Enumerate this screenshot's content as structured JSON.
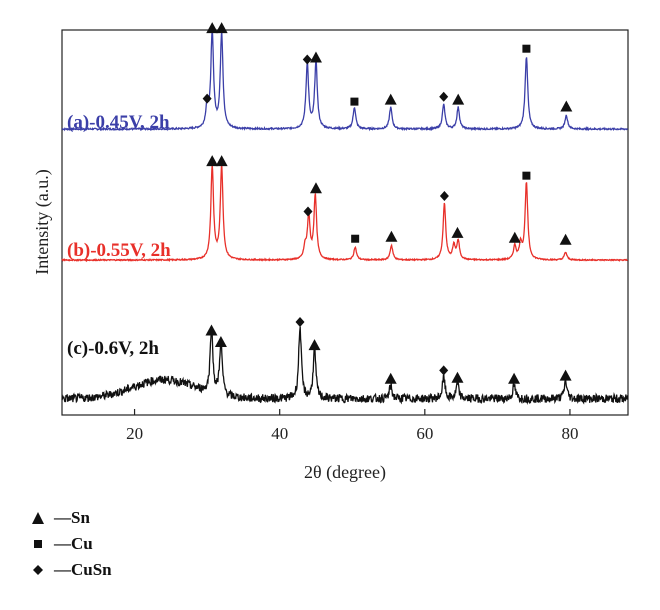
{
  "chart_data": {
    "type": "line",
    "xlabel": "2θ (degree)",
    "ylabel": "Intensity (a.u.)",
    "xlim": [
      10,
      88
    ],
    "xticks": [
      20,
      40,
      60,
      80
    ],
    "grid": false,
    "legend_placement": "bottom-left",
    "series": [
      {
        "name": "(a)-0.45V, 2h",
        "color": "#3b3fa8",
        "baseline": 0.03,
        "noise": 0.008,
        "peaks": [
          {
            "x": 30.0,
            "h": 0.22
          },
          {
            "x": 30.7,
            "h": 0.98
          },
          {
            "x": 32.0,
            "h": 0.97
          },
          {
            "x": 43.8,
            "h": 0.66
          },
          {
            "x": 45.0,
            "h": 0.68
          },
          {
            "x": 50.3,
            "h": 0.22
          },
          {
            "x": 55.3,
            "h": 0.22
          },
          {
            "x": 62.6,
            "h": 0.25
          },
          {
            "x": 64.6,
            "h": 0.22
          },
          {
            "x": 74.0,
            "h": 0.74
          },
          {
            "x": 79.5,
            "h": 0.14
          }
        ],
        "markers": [
          {
            "x": 30.0,
            "h": 0.34,
            "type": "diamond"
          },
          {
            "x": 30.7,
            "h": 1.06,
            "type": "triangle"
          },
          {
            "x": 32.0,
            "h": 1.06,
            "type": "triangle"
          },
          {
            "x": 43.8,
            "h": 0.74,
            "type": "diamond"
          },
          {
            "x": 45.0,
            "h": 0.76,
            "type": "triangle"
          },
          {
            "x": 50.3,
            "h": 0.31,
            "type": "square"
          },
          {
            "x": 55.3,
            "h": 0.33,
            "type": "triangle"
          },
          {
            "x": 62.6,
            "h": 0.36,
            "type": "diamond"
          },
          {
            "x": 64.6,
            "h": 0.33,
            "type": "triangle"
          },
          {
            "x": 74.0,
            "h": 0.85,
            "type": "square"
          },
          {
            "x": 79.5,
            "h": 0.26,
            "type": "triangle"
          }
        ]
      },
      {
        "name": "(b)-0.55V, 2h",
        "color": "#e8302a",
        "baseline": 0.02,
        "noise": 0.006,
        "peaks": [
          {
            "x": 30.7,
            "h": 0.96
          },
          {
            "x": 32.0,
            "h": 0.96
          },
          {
            "x": 43.5,
            "h": 0.12
          },
          {
            "x": 44.0,
            "h": 0.44
          },
          {
            "x": 44.9,
            "h": 0.66
          },
          {
            "x": 50.4,
            "h": 0.13
          },
          {
            "x": 55.4,
            "h": 0.15
          },
          {
            "x": 62.7,
            "h": 0.58
          },
          {
            "x": 64.0,
            "h": 0.14
          },
          {
            "x": 64.6,
            "h": 0.19
          },
          {
            "x": 72.4,
            "h": 0.14
          },
          {
            "x": 73.2,
            "h": 0.16
          },
          {
            "x": 74.0,
            "h": 0.79
          },
          {
            "x": 79.4,
            "h": 0.08
          }
        ],
        "markers": [
          {
            "x": 30.7,
            "h": 1.04,
            "type": "triangle"
          },
          {
            "x": 32.0,
            "h": 1.04,
            "type": "triangle"
          },
          {
            "x": 43.9,
            "h": 0.52,
            "type": "diamond"
          },
          {
            "x": 45.0,
            "h": 0.76,
            "type": "triangle"
          },
          {
            "x": 50.4,
            "h": 0.24,
            "type": "square"
          },
          {
            "x": 55.4,
            "h": 0.26,
            "type": "triangle"
          },
          {
            "x": 62.7,
            "h": 0.68,
            "type": "diamond"
          },
          {
            "x": 64.5,
            "h": 0.3,
            "type": "triangle"
          },
          {
            "x": 72.4,
            "h": 0.25,
            "type": "triangle"
          },
          {
            "x": 74.0,
            "h": 0.89,
            "type": "square"
          },
          {
            "x": 79.4,
            "h": 0.23,
            "type": "triangle"
          }
        ]
      },
      {
        "name": "(c)-0.6V, 2h",
        "color": "#111111",
        "baseline": 0.06,
        "noise": 0.04,
        "hump": {
          "x": 24,
          "h": 0.18,
          "w": 6
        },
        "peaks": [
          {
            "x": 30.6,
            "h": 0.62
          },
          {
            "x": 31.9,
            "h": 0.51
          },
          {
            "x": 42.8,
            "h": 0.68
          },
          {
            "x": 44.8,
            "h": 0.47
          },
          {
            "x": 55.3,
            "h": 0.12
          },
          {
            "x": 62.6,
            "h": 0.2
          },
          {
            "x": 64.5,
            "h": 0.14
          },
          {
            "x": 72.3,
            "h": 0.13
          },
          {
            "x": 79.4,
            "h": 0.17
          }
        ],
        "markers": [
          {
            "x": 30.6,
            "h": 0.71,
            "type": "triangle"
          },
          {
            "x": 31.9,
            "h": 0.6,
            "type": "triangle"
          },
          {
            "x": 42.8,
            "h": 0.79,
            "type": "diamond"
          },
          {
            "x": 44.8,
            "h": 0.57,
            "type": "triangle"
          },
          {
            "x": 55.3,
            "h": 0.25,
            "type": "triangle"
          },
          {
            "x": 62.6,
            "h": 0.33,
            "type": "diamond"
          },
          {
            "x": 64.5,
            "h": 0.26,
            "type": "triangle"
          },
          {
            "x": 72.3,
            "h": 0.25,
            "type": "triangle"
          },
          {
            "x": 79.4,
            "h": 0.28,
            "type": "triangle"
          }
        ]
      }
    ],
    "legend": [
      {
        "marker": "triangle",
        "label": "—Sn"
      },
      {
        "marker": "square",
        "label": "—Cu"
      },
      {
        "marker": "diamond",
        "label": "—CuSn"
      }
    ]
  }
}
